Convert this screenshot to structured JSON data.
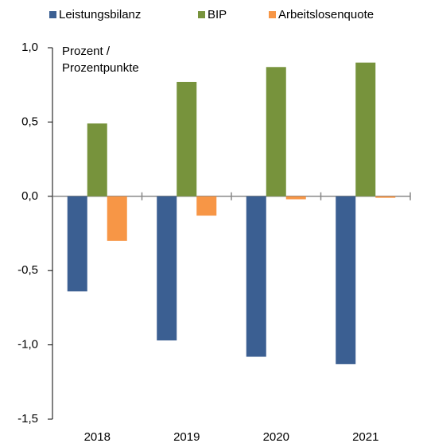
{
  "chart_data": {
    "type": "bar",
    "y_label": "Prozent / Prozentpunkte",
    "categories": [
      "2018",
      "2019",
      "2020",
      "2021"
    ],
    "series": [
      {
        "name": "Leistungsbilanz",
        "color": "#3b5f92",
        "values": [
          -0.64,
          -0.97,
          -1.08,
          -1.13
        ]
      },
      {
        "name": "BIP",
        "color": "#77933c",
        "values": [
          0.49,
          0.77,
          0.87,
          0.9
        ]
      },
      {
        "name": "Arbeitslosenquote",
        "color": "#f79646",
        "values": [
          -0.3,
          -0.13,
          -0.02,
          -0.01
        ]
      }
    ],
    "ylim": [
      -1.5,
      1.0
    ],
    "yticks": [
      {
        "value": -1.5,
        "label": "-1,5"
      },
      {
        "value": -1.0,
        "label": "-1,0"
      },
      {
        "value": -0.5,
        "label": "-0,5"
      },
      {
        "value": 0,
        "label": "0,0"
      },
      {
        "value": 0.5,
        "label": "0,5"
      },
      {
        "value": 1.0,
        "label": "1,0"
      }
    ],
    "grid": false,
    "legend": "top"
  }
}
